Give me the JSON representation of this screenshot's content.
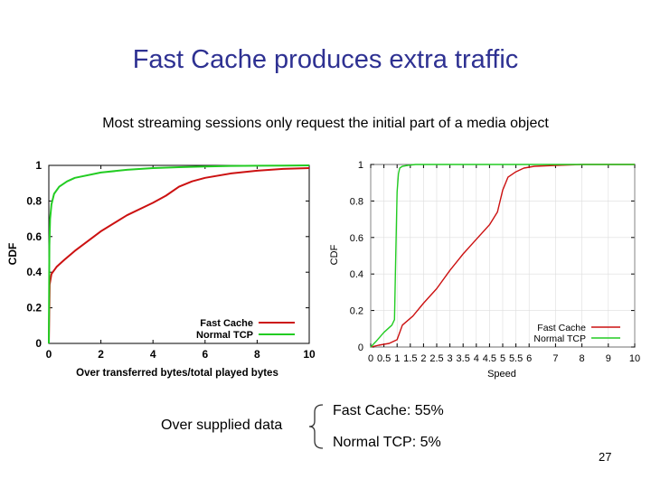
{
  "slide": {
    "title": "Fast Cache produces extra traffic",
    "subtitle": "Most streaming sessions only request the initial part of a media object",
    "over_label": "Over supplied data",
    "fast_cache_stat": "Fast Cache: 55%",
    "normal_tcp_stat": "Normal TCP: 5%",
    "page_number": "27"
  },
  "colors": {
    "fast_cache": "#cc1111",
    "normal_tcp": "#22cc22",
    "title": "#2e3192"
  },
  "chart_data": [
    {
      "type": "line",
      "title": "",
      "xlabel": "Over transferred bytes/total played bytes",
      "ylabel": "CDF",
      "xlim": [
        0,
        10
      ],
      "ylim": [
        0,
        1
      ],
      "xticks": [
        0,
        2,
        4,
        6,
        8,
        10
      ],
      "yticks": [
        0,
        0.2,
        0.4,
        0.6,
        0.8,
        1
      ],
      "xtick_labels": [
        "0",
        "2",
        "4",
        "6",
        "8",
        "10"
      ],
      "ytick_labels": [
        "0",
        "0.2",
        "0.4",
        "0.6",
        "0.8",
        "1"
      ],
      "legend_position": "bottom-right",
      "series": [
        {
          "name": "Fast Cache",
          "x": [
            0,
            0.03,
            0.1,
            0.3,
            0.6,
            1,
            2,
            3,
            4,
            4.5,
            5,
            5.5,
            6,
            7,
            8,
            9,
            10
          ],
          "y": [
            0,
            0.33,
            0.39,
            0.43,
            0.47,
            0.52,
            0.63,
            0.72,
            0.79,
            0.83,
            0.88,
            0.91,
            0.93,
            0.955,
            0.97,
            0.98,
            0.985
          ]
        },
        {
          "name": "Normal TCP",
          "x": [
            0,
            0.02,
            0.05,
            0.1,
            0.2,
            0.4,
            0.7,
            1,
            2,
            3,
            4,
            5,
            6,
            7,
            8,
            9,
            10
          ],
          "y": [
            0,
            0.55,
            0.7,
            0.78,
            0.84,
            0.88,
            0.91,
            0.93,
            0.96,
            0.975,
            0.985,
            0.99,
            0.994,
            0.997,
            0.998,
            0.999,
            1
          ]
        }
      ]
    },
    {
      "type": "line",
      "title": "",
      "xlabel": "Speed",
      "ylabel": "CDF",
      "xlim": [
        0,
        10
      ],
      "ylim": [
        0,
        1
      ],
      "xticks": [
        0,
        0.5,
        1,
        1.5,
        2,
        2.5,
        3,
        3.5,
        4,
        4.5,
        5,
        5.5,
        6,
        7,
        8,
        9,
        10
      ],
      "yticks": [
        0,
        0.2,
        0.4,
        0.6,
        0.8,
        1
      ],
      "xtick_labels": [
        "0",
        "0.5",
        "1",
        "1.5",
        "2",
        "2.5",
        "3",
        "3.5",
        "4",
        "4.5",
        "5",
        "5.5",
        "6",
        "7",
        "8",
        "9",
        "10"
      ],
      "ytick_labels": [
        "0",
        "0.2",
        "0.4",
        "0.6",
        "0.8",
        "1"
      ],
      "legend_position": "bottom-right",
      "series": [
        {
          "name": "Fast Cache",
          "x": [
            0,
            0.3,
            0.7,
            1.0,
            1.2,
            1.6,
            2.0,
            2.5,
            3.0,
            3.5,
            4.0,
            4.5,
            4.8,
            5.0,
            5.2,
            5.5,
            5.8,
            6.2,
            7,
            8,
            10
          ],
          "y": [
            0,
            0.01,
            0.02,
            0.04,
            0.12,
            0.17,
            0.24,
            0.32,
            0.42,
            0.51,
            0.59,
            0.67,
            0.74,
            0.86,
            0.93,
            0.96,
            0.98,
            0.99,
            0.995,
            1,
            1
          ]
        },
        {
          "name": "Normal TCP",
          "x": [
            0,
            0.2,
            0.5,
            0.8,
            0.9,
            0.95,
            1.0,
            1.05,
            1.1,
            1.2,
            1.4,
            1.7,
            2,
            4,
            6,
            8,
            10
          ],
          "y": [
            0,
            0.03,
            0.08,
            0.12,
            0.15,
            0.5,
            0.85,
            0.95,
            0.98,
            0.99,
            0.995,
            1,
            1,
            1,
            1,
            1,
            1
          ]
        }
      ]
    }
  ]
}
